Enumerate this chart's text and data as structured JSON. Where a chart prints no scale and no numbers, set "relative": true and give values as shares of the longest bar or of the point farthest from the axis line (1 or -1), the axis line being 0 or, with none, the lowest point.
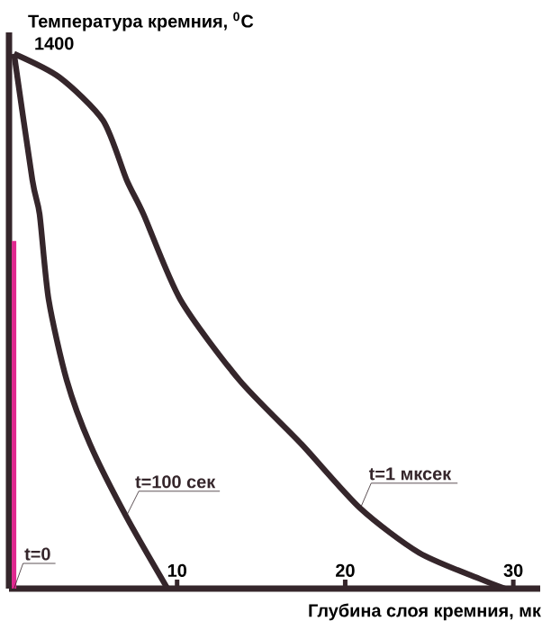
{
  "chart_data": {
    "type": "line",
    "xlabel": "Глубина слоя кремния, мк",
    "ylabel": "Температура кремния, $^{0}$C",
    "relative": true,
    "xlim": [
      0,
      31.6
    ],
    "xticks": [
      10,
      20,
      30
    ],
    "annotations": [
      {
        "text": "1400",
        "x": 0.3,
        "y": 1
      }
    ],
    "series": [
      {
        "name": "t=0",
        "color": "#e0288f",
        "x": [
          0.3,
          0.3
        ],
        "values": [
          0,
          0.65
        ]
      },
      {
        "name": "t=100 сек",
        "color": "#35262b",
        "x": [
          0.3,
          1.39,
          1.82,
          2.36,
          3.43,
          4.82,
          6.97,
          9.43
        ],
        "values": [
          1,
          0.764,
          0.7,
          0.54,
          0.39,
          0.27,
          0.135,
          0
        ]
      },
      {
        "name": "t=1 мксек",
        "color": "#35262b",
        "x": [
          0.3,
          3.0,
          5.6,
          7.0,
          8.0,
          10.2,
          13.7,
          17.4,
          20.9,
          24.4,
          28.1,
          29.5
        ],
        "values": [
          1,
          0.956,
          0.875,
          0.764,
          0.7,
          0.54,
          0.39,
          0.27,
          0.15,
          0.067,
          0.017,
          0
        ]
      }
    ]
  }
}
